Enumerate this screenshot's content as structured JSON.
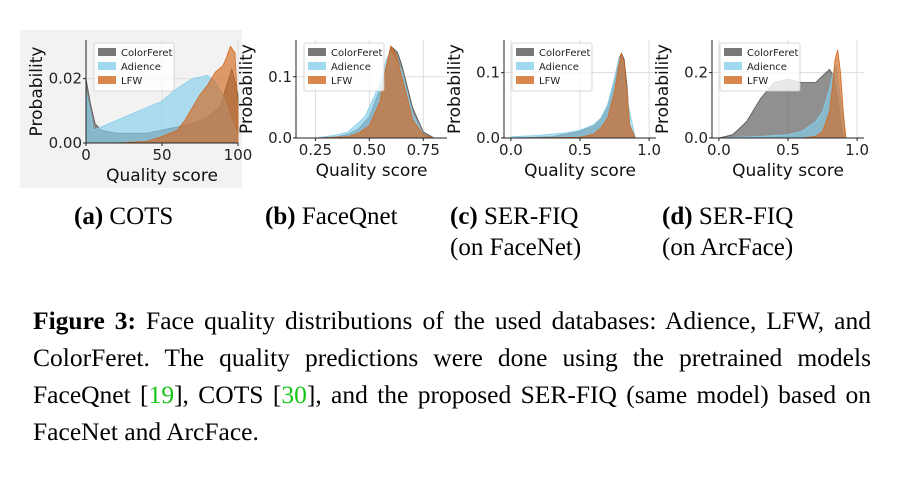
{
  "panels": [
    {
      "id": "a",
      "label": "(a)",
      "caption_lines": [
        "COTS"
      ],
      "ylabel": "Probability",
      "xlabel": "Quality score",
      "xticks": [
        "0",
        "50",
        "100"
      ],
      "yticks": [
        "0.00",
        "0.02"
      ],
      "legend": [
        "ColorFeret",
        "Adience",
        "LFW"
      ]
    },
    {
      "id": "b",
      "label": "(b)",
      "caption_lines": [
        "FaceQnet"
      ],
      "ylabel": "Probability",
      "xlabel": "Quality score",
      "xticks": [
        "0.25",
        "0.50",
        "0.75"
      ],
      "yticks": [
        "0.0",
        "0.1"
      ],
      "legend": [
        "ColorFeret",
        "Adience",
        "LFW"
      ]
    },
    {
      "id": "c",
      "label": "(c)",
      "caption_lines": [
        "SER-FIQ",
        "(on FaceNet)"
      ],
      "ylabel": "Probability",
      "xlabel": "Quality score",
      "xticks": [
        "0.0",
        "0.5",
        "1.0"
      ],
      "yticks": [
        "0.0",
        "0.1"
      ],
      "legend": [
        "ColorFeret",
        "Adience",
        "LFW"
      ]
    },
    {
      "id": "d",
      "label": "(d)",
      "caption_lines": [
        "SER-FIQ",
        "(on ArcFace)"
      ],
      "ylabel": "Probability",
      "xlabel": "Quality score",
      "xticks": [
        "0.0",
        "0.5",
        "1.0"
      ],
      "yticks": [
        "0.0",
        "0.2"
      ],
      "legend": [
        "ColorFeret",
        "Adience",
        "LFW"
      ]
    }
  ],
  "colors": {
    "ColorFeret": "#555555",
    "Adience": "#87ceeb",
    "LFW": "#d2691e"
  },
  "caption": {
    "label": "Figure 3:",
    "text_1": " Face quality distributions of the used databases: Adience, LFW, and ColorFeret. The quality predictions were done using the pretrained models FaceQnet [",
    "ref_1": "19",
    "text_2": "], COTS [",
    "ref_2": "30",
    "text_3": "], and the proposed SER-FIQ (same model) based on FaceNet and ArcFace."
  },
  "chart_data": [
    {
      "type": "area",
      "title": "",
      "xlabel": "Quality score",
      "ylabel": "Probability",
      "xlim": [
        0,
        100
      ],
      "ylim": [
        0,
        0.032
      ],
      "legend_position": "top-left",
      "series": [
        {
          "name": "ColorFeret",
          "x": [
            0,
            3,
            6,
            10,
            20,
            30,
            40,
            50,
            60,
            70,
            80,
            88,
            92,
            96,
            100
          ],
          "y": [
            0.02,
            0.012,
            0.006,
            0.004,
            0.003,
            0.003,
            0.003,
            0.004,
            0.005,
            0.006,
            0.008,
            0.011,
            0.017,
            0.023,
            0.015
          ]
        },
        {
          "name": "Adience",
          "x": [
            0,
            3,
            5,
            10,
            20,
            30,
            40,
            50,
            55,
            60,
            70,
            80,
            85,
            90,
            95,
            100
          ],
          "y": [
            0.016,
            0.009,
            0.004,
            0.005,
            0.007,
            0.009,
            0.011,
            0.013,
            0.015,
            0.017,
            0.02,
            0.021,
            0.019,
            0.015,
            0.008,
            0.002
          ]
        },
        {
          "name": "LFW",
          "x": [
            0,
            10,
            20,
            40,
            50,
            60,
            65,
            70,
            75,
            80,
            85,
            90,
            92,
            95,
            98,
            100
          ],
          "y": [
            0.0,
            0.0,
            0.0,
            0.0005,
            0.002,
            0.004,
            0.007,
            0.011,
            0.015,
            0.018,
            0.022,
            0.024,
            0.026,
            0.03,
            0.028,
            0.01
          ]
        }
      ]
    },
    {
      "type": "area",
      "title": "",
      "xlabel": "Quality score",
      "ylabel": "Probability",
      "xlim": [
        0.16,
        0.86
      ],
      "ylim": [
        0,
        0.16
      ],
      "legend_position": "top-left",
      "series": [
        {
          "name": "ColorFeret",
          "x": [
            0.25,
            0.35,
            0.4,
            0.45,
            0.5,
            0.55,
            0.58,
            0.6,
            0.63,
            0.65,
            0.7,
            0.75,
            0.8
          ],
          "y": [
            0,
            0.002,
            0.006,
            0.015,
            0.035,
            0.08,
            0.12,
            0.15,
            0.14,
            0.12,
            0.05,
            0.01,
            0
          ]
        },
        {
          "name": "Adience",
          "x": [
            0.25,
            0.35,
            0.4,
            0.45,
            0.48,
            0.5,
            0.55,
            0.58,
            0.6,
            0.65,
            0.7,
            0.75,
            0.8
          ],
          "y": [
            0,
            0.005,
            0.01,
            0.025,
            0.035,
            0.05,
            0.09,
            0.13,
            0.14,
            0.11,
            0.04,
            0.005,
            0
          ]
        },
        {
          "name": "LFW",
          "x": [
            0.25,
            0.4,
            0.45,
            0.5,
            0.55,
            0.58,
            0.6,
            0.62,
            0.65,
            0.68,
            0.7,
            0.75,
            0.8
          ],
          "y": [
            0,
            0.002,
            0.008,
            0.02,
            0.06,
            0.12,
            0.15,
            0.14,
            0.1,
            0.06,
            0.03,
            0.005,
            0
          ]
        }
      ]
    },
    {
      "type": "area",
      "title": "",
      "xlabel": "Quality score",
      "ylabel": "Probability",
      "xlim": [
        -0.05,
        1.05
      ],
      "ylim": [
        0,
        0.15
      ],
      "legend_position": "top-left",
      "series": [
        {
          "name": "ColorFeret",
          "x": [
            0,
            0.3,
            0.5,
            0.6,
            0.65,
            0.7,
            0.75,
            0.78,
            0.8,
            0.82,
            0.84,
            0.86,
            0.9
          ],
          "y": [
            0,
            0.002,
            0.01,
            0.02,
            0.03,
            0.05,
            0.09,
            0.12,
            0.13,
            0.12,
            0.08,
            0.02,
            0
          ]
        },
        {
          "name": "Adience",
          "x": [
            0,
            0.2,
            0.4,
            0.5,
            0.6,
            0.65,
            0.7,
            0.75,
            0.78,
            0.8,
            0.82,
            0.85,
            0.9
          ],
          "y": [
            0.002,
            0.004,
            0.008,
            0.012,
            0.02,
            0.03,
            0.05,
            0.09,
            0.12,
            0.125,
            0.11,
            0.05,
            0
          ]
        },
        {
          "name": "LFW",
          "x": [
            0,
            0.5,
            0.6,
            0.65,
            0.7,
            0.75,
            0.78,
            0.8,
            0.82,
            0.84,
            0.86,
            0.9
          ],
          "y": [
            0,
            0.001,
            0.006,
            0.015,
            0.03,
            0.07,
            0.11,
            0.13,
            0.115,
            0.07,
            0.02,
            0
          ]
        }
      ]
    },
    {
      "type": "area",
      "title": "",
      "xlabel": "Quality score",
      "ylabel": "Probability",
      "xlim": [
        -0.05,
        1.05
      ],
      "ylim": [
        0,
        0.3
      ],
      "legend_position": "top-left",
      "series": [
        {
          "name": "ColorFeret",
          "x": [
            0,
            0.1,
            0.2,
            0.3,
            0.4,
            0.5,
            0.6,
            0.7,
            0.75,
            0.8,
            0.83,
            0.86,
            0.9
          ],
          "y": [
            0,
            0.01,
            0.05,
            0.12,
            0.17,
            0.18,
            0.17,
            0.17,
            0.19,
            0.21,
            0.19,
            0.12,
            0
          ]
        },
        {
          "name": "Adience",
          "x": [
            0,
            0.3,
            0.5,
            0.6,
            0.7,
            0.75,
            0.8,
            0.82,
            0.85,
            0.88,
            0.92
          ],
          "y": [
            0,
            0.005,
            0.01,
            0.02,
            0.05,
            0.08,
            0.15,
            0.19,
            0.22,
            0.12,
            0
          ]
        },
        {
          "name": "LFW",
          "x": [
            0.6,
            0.7,
            0.75,
            0.8,
            0.82,
            0.84,
            0.86,
            0.88,
            0.9,
            0.92
          ],
          "y": [
            0,
            0.005,
            0.02,
            0.08,
            0.15,
            0.24,
            0.27,
            0.2,
            0.08,
            0
          ]
        }
      ]
    }
  ]
}
